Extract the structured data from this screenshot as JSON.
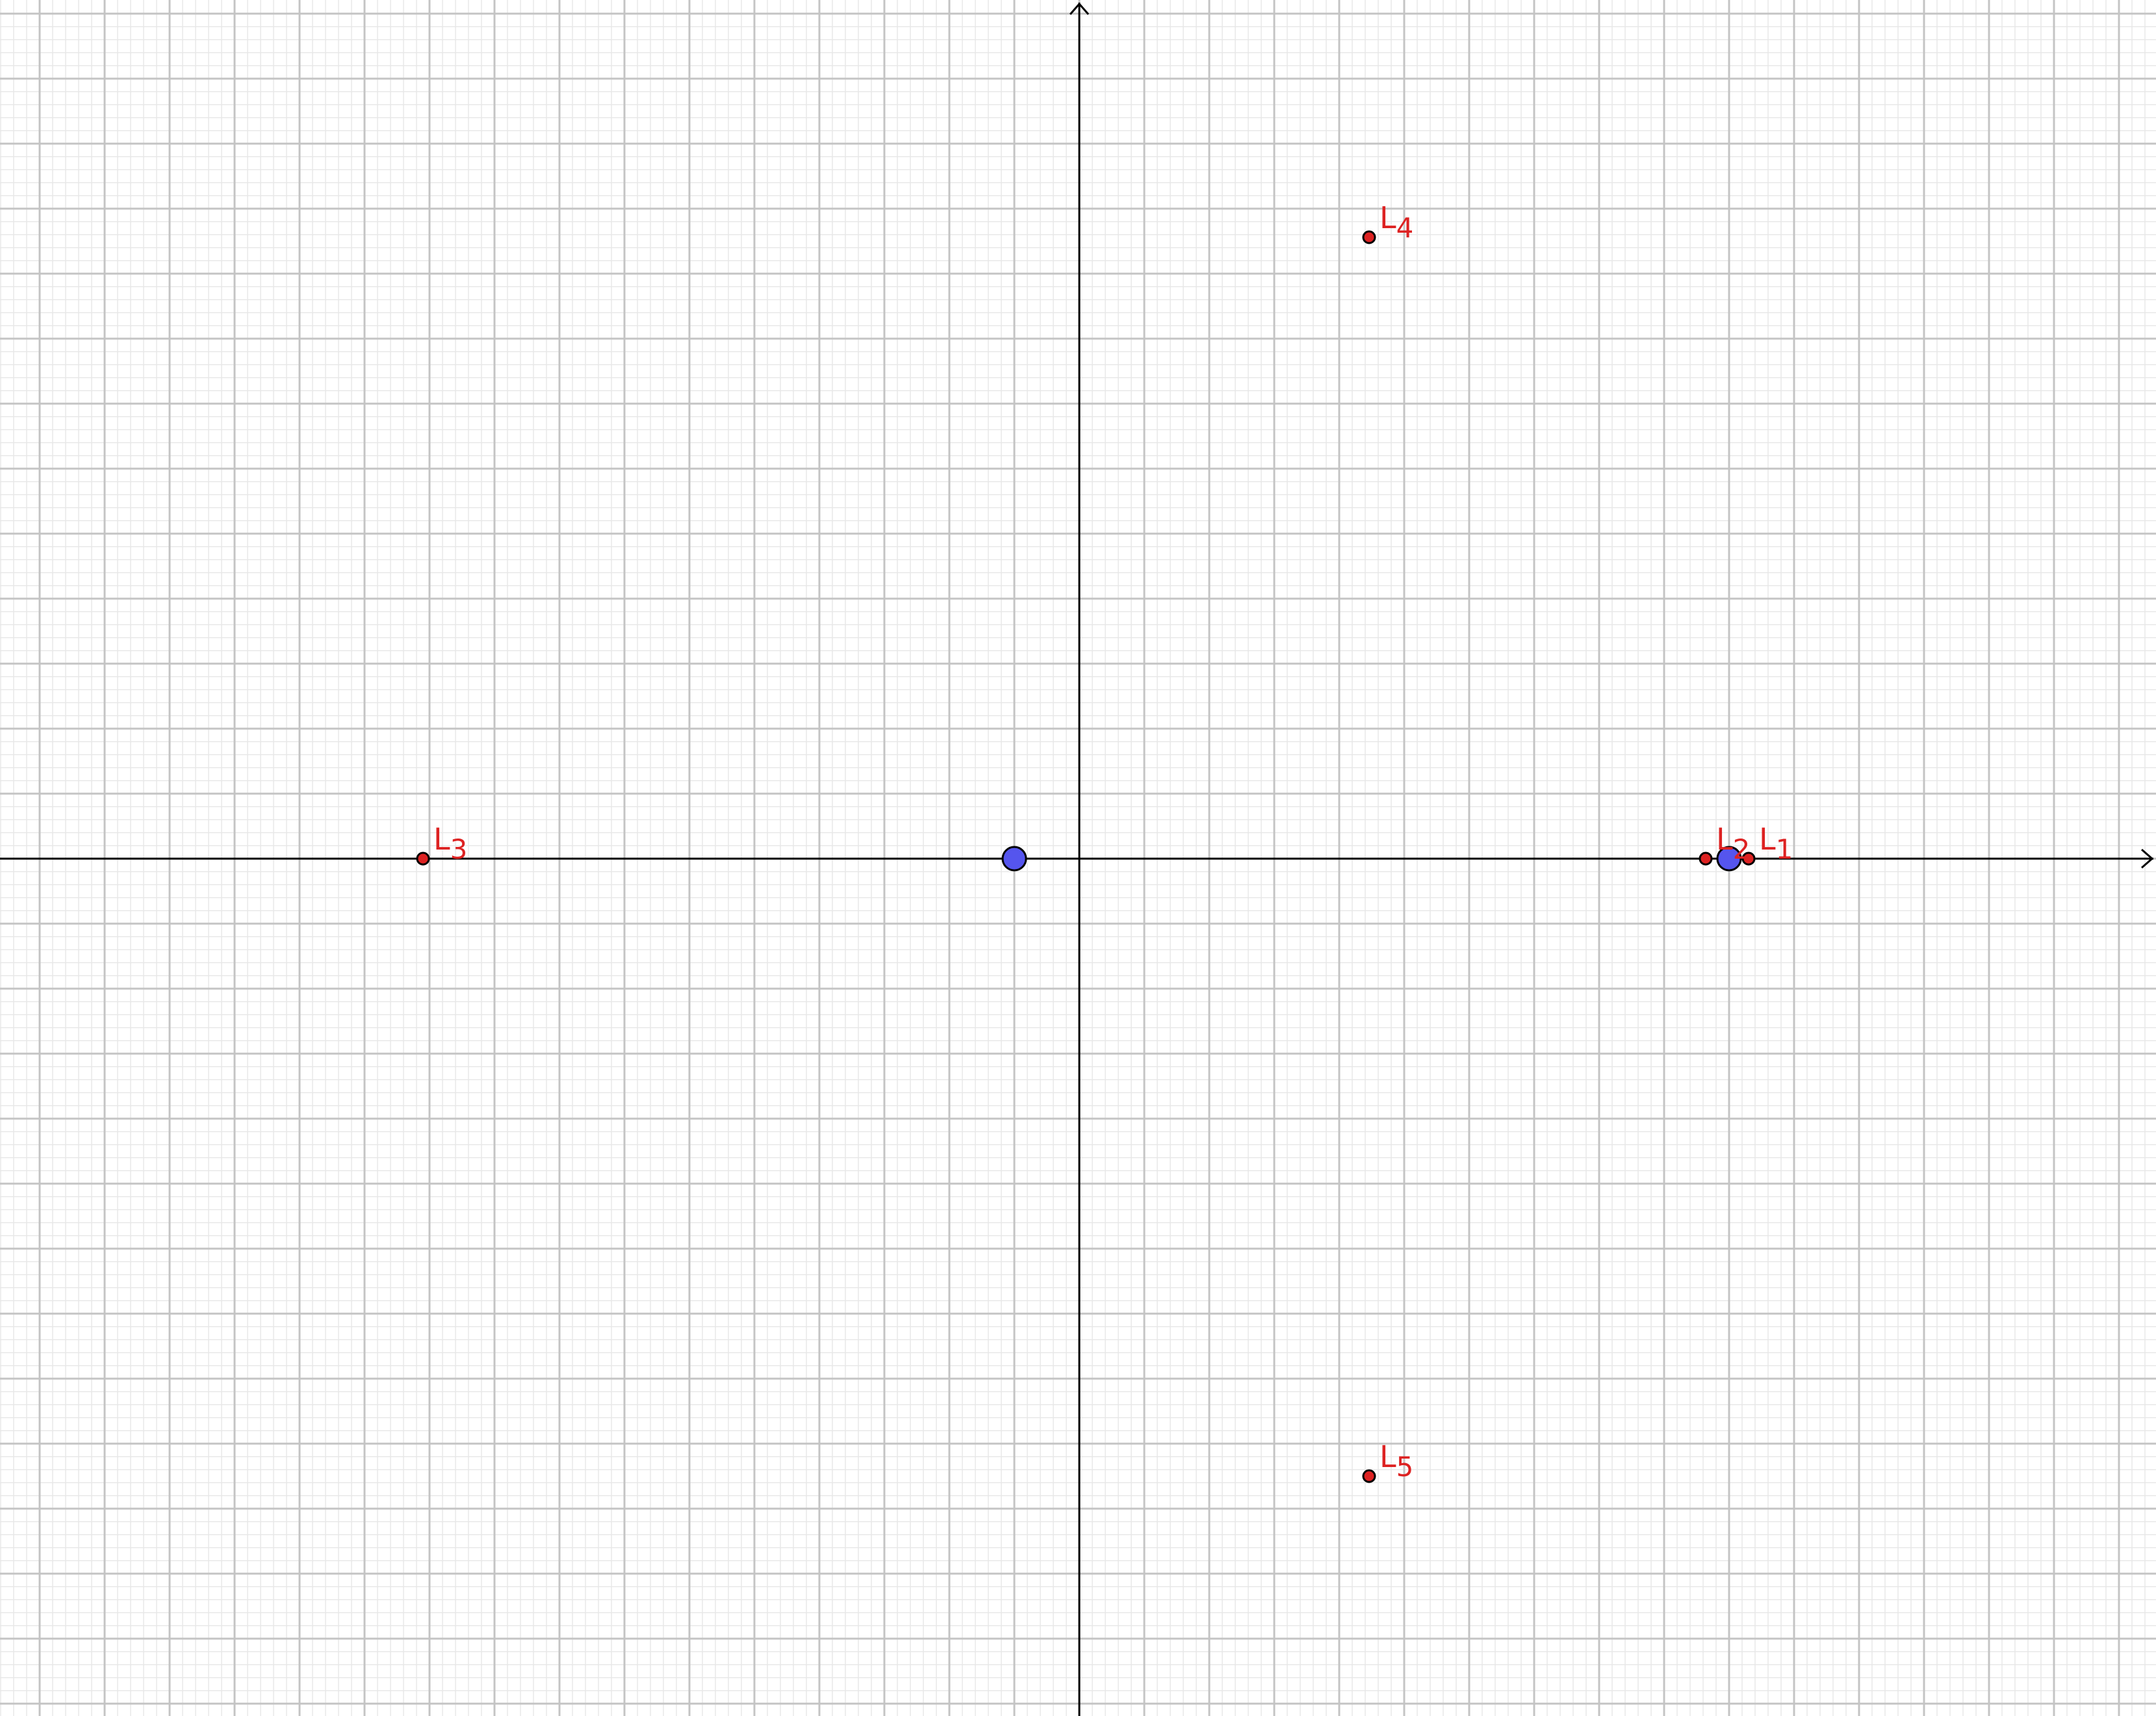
{
  "canvas": {
    "background": "#ffffff",
    "minor_grid_color": "#e8e8e8",
    "major_grid_color": "#c4c4c4",
    "axis_color": "#000000",
    "x_range": [
      -8.3,
      8.3
    ],
    "y_range": [
      -6.6,
      6.6
    ],
    "major_grid_step": 0.5,
    "minor_per_major": 5,
    "axes_arrows": true
  },
  "masses": [
    {
      "id": "primary",
      "x": -0.5,
      "y": 0,
      "color": "#5555ee",
      "stroke": "#000000"
    },
    {
      "id": "secondary",
      "x": 5.0,
      "y": 0,
      "color": "#5555ee",
      "stroke": "#000000"
    }
  ],
  "lagrange_points": [
    {
      "id": "L1",
      "base": "L",
      "sub": "1",
      "x": 5.15,
      "y": 0
    },
    {
      "id": "L2",
      "base": "L",
      "sub": "2",
      "x": 4.82,
      "y": 0
    },
    {
      "id": "L3",
      "base": "L",
      "sub": "3",
      "x": -5.05,
      "y": 0
    },
    {
      "id": "L4",
      "base": "L",
      "sub": "4",
      "x": 2.23,
      "y": 4.78
    },
    {
      "id": "L5",
      "base": "L",
      "sub": "5",
      "x": 2.23,
      "y": -4.75
    }
  ],
  "point_style": {
    "fill": "#dd2222",
    "stroke": "#000000",
    "label_color": "#dd2222"
  }
}
